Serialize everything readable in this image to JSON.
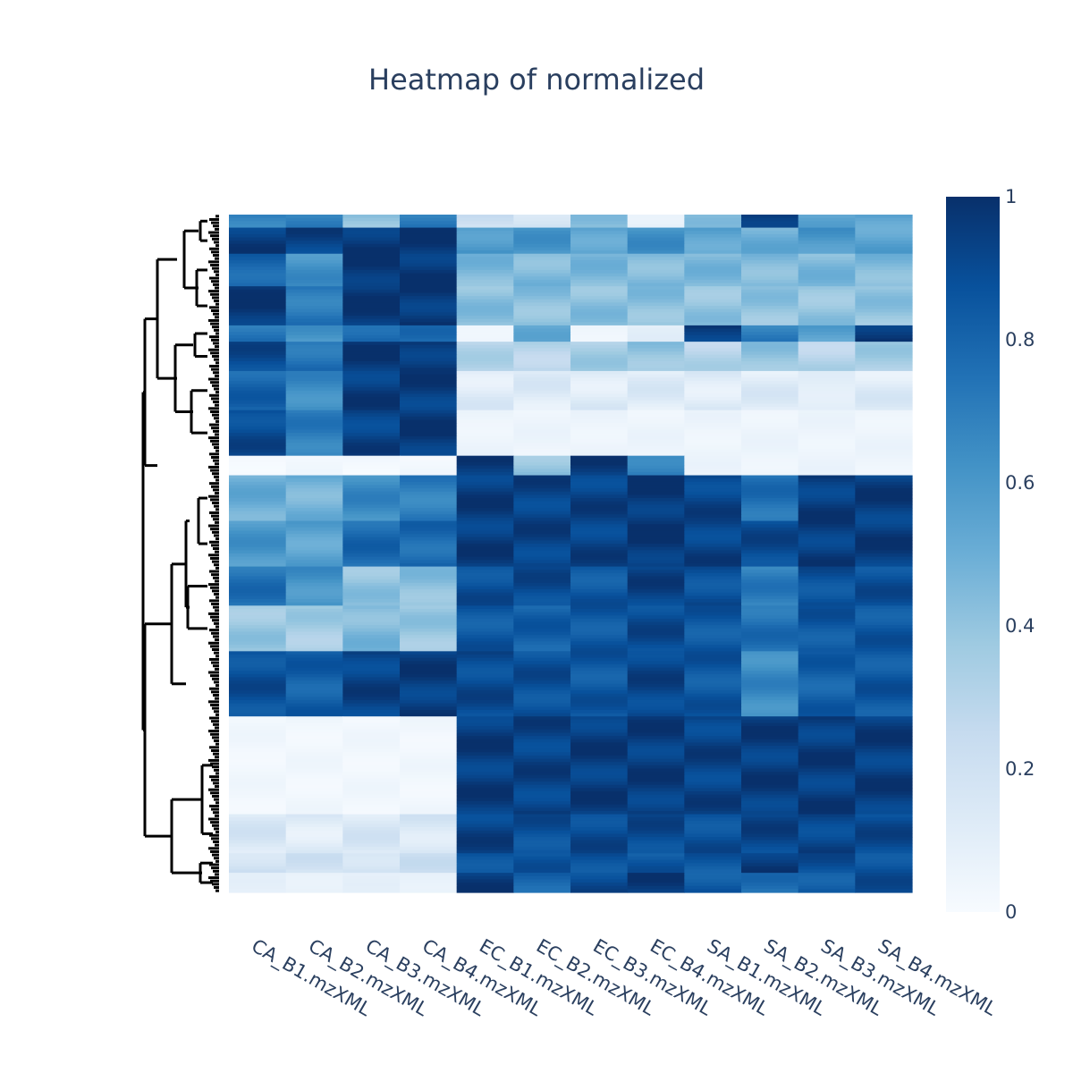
{
  "chart_data": {
    "type": "heatmap",
    "title": "Heatmap of normalized",
    "columns": [
      "CA_B1.mzXML",
      "CA_B2.mzXML",
      "CA_B3.mzXML",
      "CA_B4.mzXML",
      "EC_B1.mzXML",
      "EC_B2.mzXML",
      "EC_B3.mzXML",
      "EC_B4.mzXML",
      "SA_B1.mzXML",
      "SA_B2.mzXML",
      "SA_B3.mzXML",
      "SA_B4.mzXML"
    ],
    "colorscale": "Blues",
    "colorscale_colors": [
      "#f7fbff",
      "#deebf7",
      "#c6dbef",
      "#9ecae1",
      "#6baed6",
      "#4292c6",
      "#2171b5",
      "#08519c",
      "#08306b"
    ],
    "zrange": [
      0,
      1
    ],
    "colorbar_ticks": [
      "0",
      "0.2",
      "0.4",
      "0.6",
      "0.8",
      "1"
    ],
    "colorbar_tick_values": [
      0,
      0.2,
      0.4,
      0.6,
      0.8,
      1
    ],
    "row_dendrogram": true,
    "row_blocks": [
      {
        "rows": 4,
        "values": [
          0.7,
          0.68,
          0.4,
          0.72,
          0.2,
          0.2,
          0.4,
          0.12,
          0.4,
          0.98,
          0.52,
          0.55
        ]
      },
      {
        "rows": 8,
        "values": [
          0.95,
          0.93,
          0.97,
          0.98,
          0.6,
          0.6,
          0.55,
          0.62,
          0.55,
          0.5,
          0.6,
          0.55
        ]
      },
      {
        "rows": 10,
        "values": [
          0.8,
          0.62,
          0.98,
          0.97,
          0.45,
          0.45,
          0.45,
          0.45,
          0.45,
          0.45,
          0.45,
          0.45
        ]
      },
      {
        "rows": 12,
        "values": [
          0.97,
          0.72,
          0.97,
          0.97,
          0.42,
          0.42,
          0.42,
          0.42,
          0.4,
          0.4,
          0.4,
          0.4
        ]
      },
      {
        "rows": 5,
        "values": [
          0.75,
          0.6,
          0.8,
          0.75,
          0.05,
          0.5,
          0.05,
          0.1,
          0.95,
          0.7,
          0.55,
          0.98
        ]
      },
      {
        "rows": 9,
        "values": [
          0.9,
          0.75,
          0.96,
          0.97,
          0.3,
          0.3,
          0.35,
          0.4,
          0.3,
          0.4,
          0.3,
          0.35
        ]
      },
      {
        "rows": 12,
        "values": [
          0.8,
          0.65,
          0.95,
          0.95,
          0.12,
          0.12,
          0.12,
          0.12,
          0.12,
          0.12,
          0.1,
          0.12
        ]
      },
      {
        "rows": 14,
        "values": [
          0.9,
          0.7,
          0.93,
          0.96,
          0.05,
          0.05,
          0.05,
          0.05,
          0.05,
          0.05,
          0.05,
          0.05
        ]
      },
      {
        "rows": 6,
        "values": [
          0.02,
          0.02,
          0.02,
          0.02,
          0.97,
          0.4,
          0.95,
          0.7,
          0.05,
          0.05,
          0.05,
          0.05
        ]
      },
      {
        "rows": 14,
        "values": [
          0.5,
          0.48,
          0.65,
          0.7,
          0.95,
          0.93,
          0.93,
          0.97,
          0.92,
          0.75,
          0.95,
          0.95
        ]
      },
      {
        "rows": 14,
        "values": [
          0.6,
          0.55,
          0.78,
          0.78,
          0.95,
          0.93,
          0.93,
          0.97,
          0.93,
          0.9,
          0.95,
          0.95
        ]
      },
      {
        "rows": 12,
        "values": [
          0.75,
          0.62,
          0.4,
          0.42,
          0.88,
          0.9,
          0.85,
          0.93,
          0.88,
          0.7,
          0.88,
          0.88
        ]
      },
      {
        "rows": 14,
        "values": [
          0.38,
          0.35,
          0.45,
          0.38,
          0.85,
          0.82,
          0.85,
          0.9,
          0.85,
          0.75,
          0.85,
          0.85
        ]
      },
      {
        "rows": 20,
        "values": [
          0.88,
          0.82,
          0.93,
          0.95,
          0.9,
          0.88,
          0.85,
          0.92,
          0.85,
          0.65,
          0.82,
          0.85
        ]
      },
      {
        "rows": 30,
        "values": [
          0.03,
          0.03,
          0.03,
          0.03,
          0.95,
          0.93,
          0.95,
          0.95,
          0.93,
          0.95,
          0.95,
          0.95
        ]
      },
      {
        "rows": 12,
        "values": [
          0.15,
          0.12,
          0.15,
          0.15,
          0.93,
          0.88,
          0.9,
          0.9,
          0.88,
          0.92,
          0.92,
          0.9
        ]
      },
      {
        "rows": 6,
        "values": [
          0.2,
          0.18,
          0.2,
          0.2,
          0.88,
          0.85,
          0.88,
          0.85,
          0.85,
          0.97,
          0.88,
          0.88
        ]
      },
      {
        "rows": 6,
        "values": [
          0.08,
          0.08,
          0.08,
          0.08,
          0.95,
          0.8,
          0.9,
          0.98,
          0.85,
          0.75,
          0.85,
          0.88
        ]
      }
    ]
  }
}
